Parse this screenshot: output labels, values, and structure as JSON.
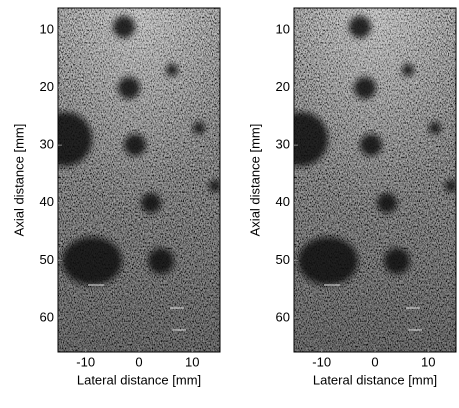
{
  "chart_data": [
    {
      "type": "image",
      "xlabel": "Lateral distance [mm]",
      "ylabel": "Axial distance [mm]",
      "xlim": [
        -15.2,
        15.2
      ],
      "ylim": [
        6.2,
        65.9
      ],
      "xticks": [
        -10,
        0,
        10
      ],
      "yticks": [
        10,
        20,
        30,
        40,
        50,
        60
      ],
      "y_inverted": true
    },
    {
      "type": "image",
      "xlabel": "Lateral distance [mm]",
      "ylabel": "Axial distance [mm]",
      "xlim": [
        -15.2,
        15.2
      ],
      "ylim": [
        6.2,
        65.9
      ],
      "xticks": [
        -10,
        0,
        10
      ],
      "yticks": [
        10,
        20,
        30,
        40,
        50,
        60
      ],
      "y_inverted": true
    }
  ]
}
